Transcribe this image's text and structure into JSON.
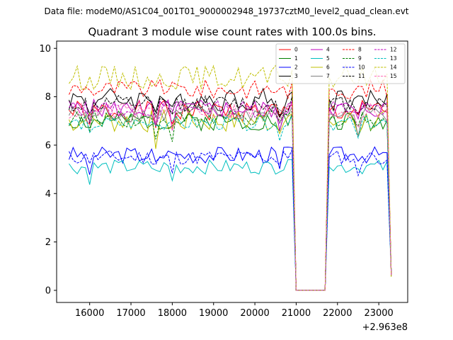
{
  "chart_data": {
    "type": "line",
    "suptitle": "Data file: modeM0/AS1C04_001T01_9000002948_19737cztM0_level2_quad_clean.evt",
    "title": "Quadrant 3 module wise count rates with 100.0s bins.",
    "xlabel": "",
    "ylabel": "",
    "xlim": [
      15200,
      23700
    ],
    "ylim": [
      -0.5,
      10.3
    ],
    "x_ticks": [
      16000,
      17000,
      18000,
      19000,
      20000,
      21000,
      22000,
      23000
    ],
    "x_tick_labels": [
      "16000",
      "17000",
      "18000",
      "19000",
      "20000",
      "21000",
      "22000",
      "23000"
    ],
    "y_ticks": [
      0,
      2,
      4,
      6,
      8,
      10
    ],
    "y_tick_labels": [
      "0",
      "2",
      "4",
      "6",
      "8",
      "10"
    ],
    "x_offset_label": "+2.963e8",
    "x_start": 15500,
    "x_step": 100,
    "grid": false,
    "legend_position": "top-right",
    "series": [
      {
        "name": "0",
        "color": "#ff0000",
        "dash": "solid",
        "base": 7.4,
        "amp": 0.45,
        "seed": 1
      },
      {
        "name": "1",
        "color": "#008000",
        "dash": "solid",
        "base": 7.0,
        "amp": 0.4,
        "seed": 2
      },
      {
        "name": "2",
        "color": "#0000ff",
        "dash": "solid",
        "base": 5.6,
        "amp": 0.35,
        "seed": 3
      },
      {
        "name": "3",
        "color": "#000000",
        "dash": "solid",
        "base": 7.9,
        "amp": 0.5,
        "seed": 4
      },
      {
        "name": "4",
        "color": "#bf00bf",
        "dash": "solid",
        "base": 7.5,
        "amp": 0.4,
        "seed": 5
      },
      {
        "name": "5",
        "color": "#00bfbf",
        "dash": "solid",
        "base": 5.1,
        "amp": 0.3,
        "seed": 6
      },
      {
        "name": "6",
        "color": "#bfbf00",
        "dash": "solid",
        "base": 7.0,
        "amp": 0.5,
        "seed": 7
      },
      {
        "name": "7",
        "color": "#808080",
        "dash": "solid",
        "base": 7.3,
        "amp": 0.35,
        "seed": 8
      },
      {
        "name": "8",
        "color": "#ff0000",
        "dash": "dashed",
        "base": 8.3,
        "amp": 0.4,
        "seed": 9
      },
      {
        "name": "9",
        "color": "#008000",
        "dash": "dashed",
        "base": 7.1,
        "amp": 0.35,
        "seed": 10
      },
      {
        "name": "10",
        "color": "#0000ff",
        "dash": "dashed",
        "base": 5.5,
        "amp": 0.3,
        "seed": 11
      },
      {
        "name": "11",
        "color": "#000000",
        "dash": "dashed",
        "base": 7.7,
        "amp": 0.35,
        "seed": 12
      },
      {
        "name": "12",
        "color": "#bf00bf",
        "dash": "dashed",
        "base": 7.5,
        "amp": 0.35,
        "seed": 13
      },
      {
        "name": "13",
        "color": "#00bfbf",
        "dash": "dashed",
        "base": 6.9,
        "amp": 0.3,
        "seed": 14
      },
      {
        "name": "14",
        "color": "#bfbf00",
        "dash": "dashed",
        "base": 8.8,
        "amp": 0.5,
        "seed": 15
      },
      {
        "name": "15",
        "color": "#ff69b4",
        "dash": "dashed",
        "base": 7.4,
        "amp": 0.35,
        "seed": 16
      }
    ],
    "gap": {
      "start": 21000,
      "end": 21700,
      "value": 0.0
    },
    "series_end": 23300,
    "end_value": 0.7
  }
}
